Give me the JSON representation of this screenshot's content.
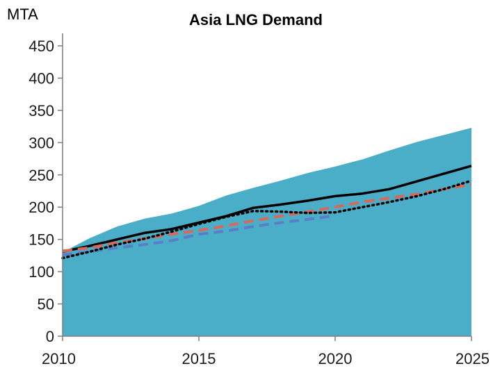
{
  "chart_data": {
    "type": "area",
    "title": "Asia LNG Demand",
    "ylabel": "MTA",
    "xlabel": "",
    "xlim": [
      2010,
      2025
    ],
    "ylim": [
      0,
      450
    ],
    "x_ticks": [
      2010,
      2015,
      2020,
      2025
    ],
    "y_ticks": [
      0,
      50,
      100,
      150,
      200,
      250,
      300,
      350,
      400,
      450
    ],
    "grid": false,
    "legend": "none",
    "colors": {
      "area": "#4aaec8",
      "solid": "#000000",
      "red_dashed": "#d9685a",
      "blue_dashed": "#5b7fc4",
      "dotted": "#000000"
    },
    "series": [
      {
        "style": "area",
        "x": [
          2010,
          2011,
          2012,
          2013,
          2014,
          2015,
          2016,
          2017,
          2018,
          2019,
          2020,
          2021,
          2022,
          2023,
          2024,
          2025
        ],
        "values": [
          130,
          152,
          170,
          182,
          190,
          202,
          218,
          230,
          241,
          253,
          263,
          274,
          288,
          301,
          312,
          323
        ]
      },
      {
        "style": "solid",
        "x": [
          2010,
          2011,
          2012,
          2013,
          2014,
          2015,
          2016,
          2017,
          2018,
          2019,
          2020,
          2021,
          2022,
          2023,
          2024,
          2025
        ],
        "values": [
          131,
          140,
          150,
          160,
          166,
          176,
          186,
          199,
          204,
          210,
          217,
          221,
          228,
          240,
          252,
          264
        ]
      },
      {
        "style": "red_dashed",
        "x": [
          2010,
          2011,
          2012,
          2013,
          2014,
          2015,
          2016,
          2017,
          2018,
          2019,
          2020,
          2021,
          2022,
          2023,
          2024,
          2025
        ],
        "values": [
          132,
          137,
          145,
          151,
          158,
          164,
          171,
          179,
          186,
          193,
          200,
          208,
          214,
          220,
          228,
          235
        ]
      },
      {
        "style": "blue_dashed",
        "x": [
          2010,
          2011,
          2012,
          2013,
          2014,
          2015,
          2016,
          2017,
          2018,
          2019,
          2020
        ],
        "values": [
          126,
          131,
          137,
          142,
          148,
          158,
          163,
          170,
          176,
          181,
          187
        ]
      },
      {
        "style": "dotted",
        "x": [
          2010,
          2011,
          2012,
          2013,
          2014,
          2015,
          2016,
          2017,
          2018,
          2019,
          2020,
          2021,
          2022,
          2023,
          2024,
          2025
        ],
        "values": [
          121,
          131,
          142,
          151,
          162,
          174,
          185,
          194,
          193,
          191,
          192,
          200,
          208,
          217,
          228,
          241
        ]
      }
    ]
  }
}
